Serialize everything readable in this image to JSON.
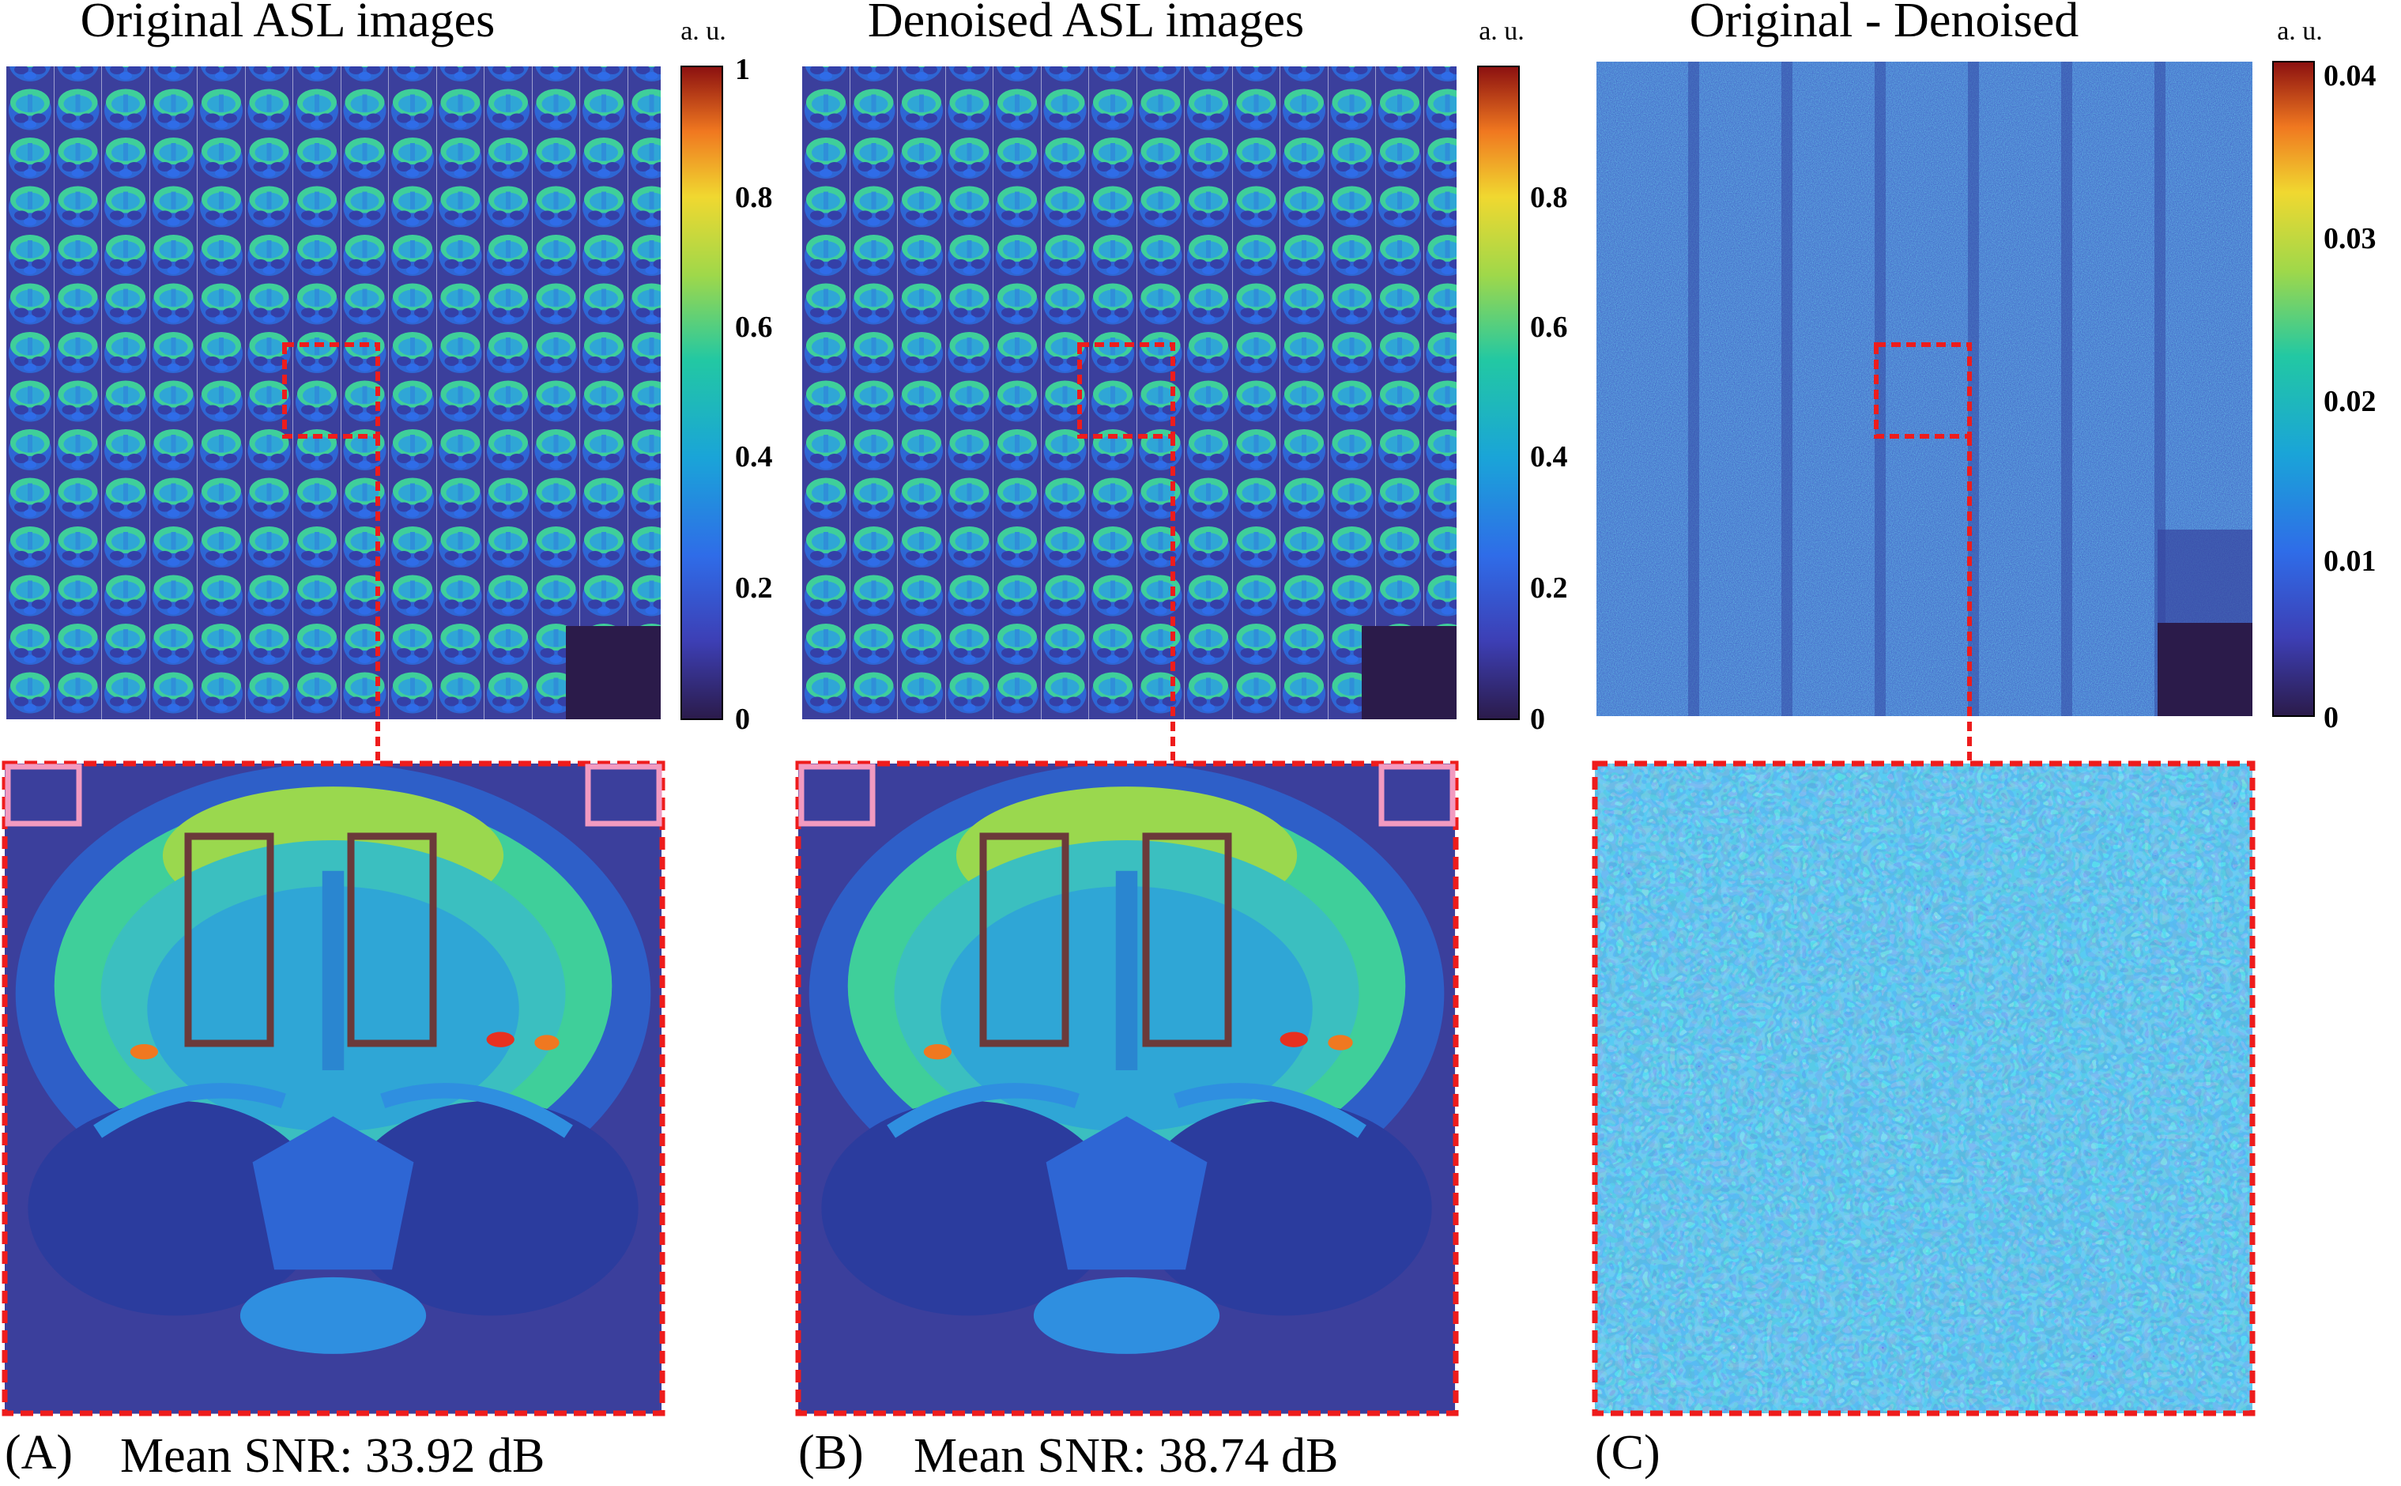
{
  "panels": [
    {
      "id": "A",
      "title": "Original ASL images",
      "unit": "a. u.",
      "ticks": [
        "1",
        "0.8",
        "0.6",
        "0.4",
        "0.2",
        "0"
      ],
      "tick_values": [
        1,
        0.8,
        0.6,
        0.4,
        0.2,
        0
      ],
      "label": "(A)",
      "snr": "Mean SNR: 33.92 dB"
    },
    {
      "id": "B",
      "title": "Denoised ASL images",
      "unit": "a. u.",
      "ticks": [
        "0.8",
        "0.6",
        "0.4",
        "0.2",
        "0"
      ],
      "tick_values": [
        0.8,
        0.6,
        0.4,
        0.2,
        0
      ],
      "label": "(B)",
      "snr": "Mean SNR: 38.74 dB"
    },
    {
      "id": "C",
      "title": "Original - Denoised",
      "unit": "a. u.",
      "ticks": [
        "0.04",
        "0.03",
        "0.02",
        "0.01",
        "0"
      ],
      "tick_values": [
        0.04,
        0.03,
        0.02,
        0.01,
        0
      ],
      "label": "(C)"
    }
  ],
  "colors": {
    "background_dark": "#3a3f8f",
    "zoom_box": "#ee1c1c",
    "roi_brain": "#6b3a3a",
    "roi_noise": "#f29ac0",
    "empty_tile": "#2b1b4a"
  }
}
